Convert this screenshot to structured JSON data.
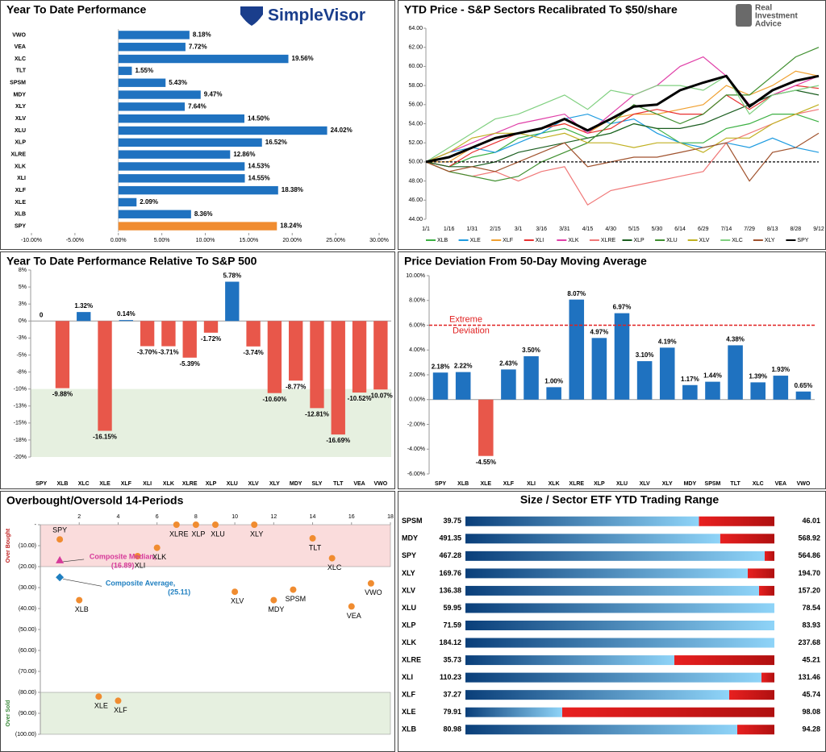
{
  "chart_data": [
    {
      "type": "hbar",
      "title": "Year To Date Performance",
      "logo": "SimpleVisor",
      "categories": [
        "VWO",
        "VEA",
        "XLC",
        "TLT",
        "SPSM",
        "MDY",
        "XLY",
        "XLV",
        "XLU",
        "XLP",
        "XLRE",
        "XLK",
        "XLI",
        "XLF",
        "XLE",
        "XLB",
        "SPY"
      ],
      "values": [
        8.18,
        7.72,
        19.56,
        1.55,
        5.43,
        9.47,
        7.64,
        14.5,
        24.02,
        16.52,
        12.86,
        14.53,
        14.55,
        18.38,
        2.09,
        8.36,
        18.24
      ],
      "value_labels": [
        "8.18%",
        "7.72%",
        "19.56%",
        "1.55%",
        "5.43%",
        "9.47%",
        "7.64%",
        "14.50%",
        "24.02%",
        "16.52%",
        "12.86%",
        "14.53%",
        "14.55%",
        "18.38%",
        "2.09%",
        "8.36%",
        "18.24%"
      ],
      "colors": [
        "#1f72c0",
        "#1f72c0",
        "#1f72c0",
        "#1f72c0",
        "#1f72c0",
        "#1f72c0",
        "#1f72c0",
        "#1f72c0",
        "#1f72c0",
        "#1f72c0",
        "#1f72c0",
        "#1f72c0",
        "#1f72c0",
        "#1f72c0",
        "#1f72c0",
        "#1f72c0",
        "#f08c30"
      ],
      "xlim": [
        -10,
        30
      ],
      "xticks": [
        {
          "value": -10,
          "label": "-10.00%"
        },
        {
          "value": -5,
          "label": "-5.00%"
        },
        {
          "value": 0,
          "label": "0.00%"
        },
        {
          "value": 5,
          "label": "5.00%"
        },
        {
          "value": 10,
          "label": "10.00%"
        },
        {
          "value": 15,
          "label": "15.00%"
        },
        {
          "value": 20,
          "label": "20.00%"
        },
        {
          "value": 25,
          "label": "25.00%"
        },
        {
          "value": 30,
          "label": "30.00%"
        }
      ]
    },
    {
      "type": "line",
      "title": "YTD Price - S&P Sectors Recalibrated To $50/share",
      "logo": [
        "Real",
        "Investment",
        "Advice"
      ],
      "x": [
        "1/1",
        "1/16",
        "1/31",
        "2/15",
        "3/1",
        "3/16",
        "3/31",
        "4/15",
        "4/30",
        "5/15",
        "5/30",
        "6/14",
        "6/29",
        "7/14",
        "7/29",
        "8/13",
        "8/28",
        "9/12"
      ],
      "series": [
        {
          "name": "XLB",
          "color": "#3cb043",
          "values": [
            50,
            49.5,
            50.5,
            51,
            52.5,
            53,
            53.5,
            52.5,
            53,
            54,
            53.5,
            52,
            52,
            53.5,
            54,
            55,
            55,
            54.2
          ]
        },
        {
          "name": "XLE",
          "color": "#1e9be0",
          "values": [
            50,
            51,
            51.5,
            51,
            52,
            53,
            54.5,
            55,
            54,
            54.5,
            53,
            52,
            51.5,
            52,
            51.5,
            52.5,
            51.5,
            51
          ]
        },
        {
          "name": "XLF",
          "color": "#f0a030",
          "values": [
            50,
            50,
            51.5,
            52.5,
            53,
            53.5,
            54,
            53,
            54.5,
            55,
            55,
            55.5,
            56,
            58,
            57,
            58,
            59.5,
            59
          ]
        },
        {
          "name": "XLI",
          "color": "#e83030",
          "values": [
            50,
            49.5,
            51,
            52,
            53,
            53.5,
            54,
            53,
            53.5,
            55,
            55.5,
            55,
            55,
            57,
            55.5,
            57,
            58,
            57.7
          ]
        },
        {
          "name": "XLK",
          "color": "#e040a8",
          "values": [
            50,
            51,
            52,
            53,
            54,
            54.5,
            55,
            53,
            55,
            57,
            58,
            60,
            61,
            59,
            56,
            57,
            58,
            59
          ]
        },
        {
          "name": "XLRE",
          "color": "#f07878",
          "values": [
            50,
            49,
            48.5,
            49,
            48,
            49,
            49.5,
            45.5,
            47,
            47.5,
            48,
            48.5,
            49,
            52,
            53,
            54,
            55,
            55.5
          ]
        },
        {
          "name": "XLP",
          "color": "#1b5e20",
          "values": [
            50,
            49.5,
            49.5,
            50,
            51,
            51.5,
            52,
            52.5,
            53,
            54,
            53.5,
            53.5,
            54,
            55,
            56,
            57,
            57.5,
            57
          ]
        },
        {
          "name": "XLU",
          "color": "#3f8f2f",
          "values": [
            50,
            49,
            48.5,
            48,
            48.5,
            50,
            51,
            52,
            54,
            56,
            55,
            54,
            55,
            57,
            57,
            59,
            61,
            62
          ]
        },
        {
          "name": "XLV",
          "color": "#c0b020",
          "values": [
            50,
            51,
            52.5,
            53,
            53,
            52.5,
            53,
            52,
            52,
            51.5,
            52,
            52,
            51,
            52.5,
            52.5,
            54,
            55,
            56
          ]
        },
        {
          "name": "XLC",
          "color": "#80d080",
          "values": [
            50,
            51.5,
            53,
            54.5,
            55,
            56,
            57,
            55.5,
            57.5,
            57,
            58,
            58,
            57.5,
            59,
            55,
            57,
            57.5,
            58
          ]
        },
        {
          "name": "XLY",
          "color": "#a0522d",
          "values": [
            50,
            49,
            49.5,
            49,
            50,
            51,
            52,
            49.5,
            50,
            50.5,
            50.5,
            51,
            51.5,
            52,
            48,
            51,
            51.5,
            53
          ]
        },
        {
          "name": "SPY",
          "color": "#000000",
          "values": [
            50,
            50.5,
            51.5,
            52.5,
            53,
            53.5,
            54.5,
            53.3,
            54.5,
            55.8,
            56,
            57.5,
            58.3,
            59,
            55.8,
            57.5,
            58.5,
            59
          ]
        }
      ],
      "hline": 50,
      "ylim": [
        44,
        64
      ],
      "yticks": [
        {
          "value": 44,
          "label": "44.00"
        },
        {
          "value": 46,
          "label": "46.00"
        },
        {
          "value": 48,
          "label": "48.00"
        },
        {
          "value": 50,
          "label": "50.00"
        },
        {
          "value": 52,
          "label": "52.00"
        },
        {
          "value": 54,
          "label": "54.00"
        },
        {
          "value": 56,
          "label": "56.00"
        },
        {
          "value": 58,
          "label": "58.00"
        },
        {
          "value": 60,
          "label": "60.00"
        },
        {
          "value": 62,
          "label": "62.00"
        },
        {
          "value": 64,
          "label": "64.00"
        }
      ]
    },
    {
      "type": "bar",
      "title": "Year To Date Performance Relative To S&P 500",
      "categories": [
        "SPY",
        "XLB",
        "XLC",
        "XLE",
        "XLF",
        "XLI",
        "XLK",
        "XLRE",
        "XLP",
        "XLU",
        "XLV",
        "XLY",
        "MDY",
        "SLY",
        "TLT",
        "VEA",
        "VWO"
      ],
      "values": [
        0,
        -9.88,
        1.32,
        -16.15,
        0.14,
        -3.7,
        -3.71,
        -5.39,
        -1.72,
        5.78,
        -3.74,
        -10.6,
        -8.77,
        -12.81,
        -16.69,
        -10.52,
        -10.07
      ],
      "value_labels": [
        "0",
        "-9.88%",
        "1.32%",
        "-16.15%",
        "0.14%",
        "-3.70%",
        "-3.71%",
        "-5.39%",
        "-1.72%",
        "5.78%",
        "-3.74%",
        "-10.60%",
        "-8.77%",
        "-12.81%",
        "-16.69%",
        "-10.52%",
        "-10.07%"
      ],
      "positive_color": "#1f72c0",
      "negative_color": "#e8574a",
      "shade": {
        "ylim": [
          -20,
          -10
        ],
        "color": "#e6f0e0"
      },
      "ylim": [
        -20,
        7.5
      ],
      "yticks": [
        {
          "value": 7.5,
          "label": "8%"
        },
        {
          "value": 5,
          "label": "5%"
        },
        {
          "value": 2.5,
          "label": "3%"
        },
        {
          "value": 0,
          "label": "0%"
        },
        {
          "value": -2.5,
          "label": "-3%"
        },
        {
          "value": -5,
          "label": "-5%"
        },
        {
          "value": -7.5,
          "label": "-8%"
        },
        {
          "value": -10,
          "label": "-10%"
        },
        {
          "value": -12.5,
          "label": "-13%"
        },
        {
          "value": -15,
          "label": "-15%"
        },
        {
          "value": -17.5,
          "label": "-18%"
        },
        {
          "value": -20,
          "label": "-20%"
        }
      ]
    },
    {
      "type": "bar",
      "title": "Price Deviation From 50-Day Moving Average",
      "categories": [
        "SPY",
        "XLB",
        "XLE",
        "XLF",
        "XLI",
        "XLK",
        "XLRE",
        "XLP",
        "XLU",
        "XLV",
        "XLY",
        "MDY",
        "SPSM",
        "TLT",
        "XLC",
        "VEA",
        "VWO"
      ],
      "values": [
        2.18,
        2.22,
        -4.55,
        2.43,
        3.5,
        1.0,
        8.07,
        4.97,
        6.97,
        3.1,
        4.19,
        1.17,
        1.44,
        4.38,
        1.39,
        1.93,
        0.65
      ],
      "value_labels": [
        "2.18%",
        "2.22%",
        "-4.55%",
        "2.43%",
        "3.50%",
        "1.00%",
        "8.07%",
        "4.97%",
        "6.97%",
        "3.10%",
        "4.19%",
        "1.17%",
        "1.44%",
        "4.38%",
        "1.39%",
        "1.93%",
        "0.65%"
      ],
      "positive_color": "#1f72c0",
      "negative_color": "#e8574a",
      "hline": 6,
      "hline_color": "#e02020",
      "annotation": [
        "Extreme",
        "Deviation"
      ],
      "ylim": [
        -6,
        10
      ],
      "yticks": [
        {
          "value": -6,
          "label": "-6.00%"
        },
        {
          "value": -4,
          "label": "-4.00%"
        },
        {
          "value": -2,
          "label": "-2.00%"
        },
        {
          "value": 0,
          "label": "0.00%"
        },
        {
          "value": 2,
          "label": "2.00%"
        },
        {
          "value": 4,
          "label": "4.00%"
        },
        {
          "value": 6,
          "label": "6.00%"
        },
        {
          "value": 8,
          "label": "8.00%"
        },
        {
          "value": 10,
          "label": "10.00%"
        }
      ]
    },
    {
      "type": "scatter",
      "title": "Overbought/Oversold 14-Periods",
      "points": {
        "color": "#f08c30",
        "labels": [
          "SPY",
          "XLB",
          "XLE",
          "XLF",
          "XLI",
          "XLK",
          "XLRE",
          "XLP",
          "XLU",
          "XLV",
          "XLY",
          "MDY",
          "SPSM",
          "TLT",
          "XLC",
          "VEA",
          "VWO"
        ],
        "x": [
          1,
          2,
          3,
          4,
          5,
          6,
          7,
          8,
          9,
          10,
          11,
          12,
          13,
          14,
          15,
          16,
          17
        ],
        "values": [
          -7,
          -36,
          -82,
          -84,
          -15,
          -11,
          0,
          0,
          0,
          -32,
          0,
          -36,
          -31,
          -6.5,
          -16,
          -39,
          -28
        ]
      },
      "median": {
        "name": "Composite Median,",
        "x": 1,
        "value": -16.89,
        "value_label": "(16.89)",
        "color": "#d63a9a"
      },
      "average": {
        "name": "Composite Average,",
        "x": 1,
        "value": -25.11,
        "value_label": "(25.11)",
        "color": "#1f7fc0"
      },
      "zones": [
        {
          "label": "Over Bought",
          "ylim": [
            -20,
            0
          ],
          "color": "#fadcdc",
          "label_color": "#c02020"
        },
        {
          "label": "Over Sold",
          "ylim": [
            -100,
            -80
          ],
          "color": "#e6f0e0",
          "label_color": "#3a8a3a"
        }
      ],
      "xlim": [
        0,
        18
      ],
      "xticks": [
        2,
        4,
        6,
        8,
        10,
        12,
        14,
        16,
        18
      ],
      "ylim": [
        -100,
        0
      ],
      "yticks": [
        {
          "value": 0,
          "label": "-"
        },
        {
          "value": -10,
          "label": "(10.00)"
        },
        {
          "value": -20,
          "label": "(20.00)"
        },
        {
          "value": -30,
          "label": "(30.00)"
        },
        {
          "value": -40,
          "label": "(40.00)"
        },
        {
          "value": -50,
          "label": "(50.00)"
        },
        {
          "value": -60,
          "label": "(60.00)"
        },
        {
          "value": -70,
          "label": "(70.00)"
        },
        {
          "value": -80,
          "label": "(80.00)"
        },
        {
          "value": -90,
          "label": "(90.00)"
        },
        {
          "value": -100,
          "label": "(100.00)"
        }
      ]
    },
    {
      "type": "range",
      "title": "Size / Sector ETF YTD Trading Range",
      "categories": [
        "SPSM",
        "MDY",
        "SPY",
        "XLY",
        "XLV",
        "XLU",
        "XLP",
        "XLK",
        "XLRE",
        "XLI",
        "XLF",
        "XLE",
        "XLB"
      ],
      "low": [
        39.75,
        491.35,
        467.28,
        169.76,
        136.38,
        59.95,
        71.59,
        184.12,
        35.73,
        110.23,
        37.27,
        79.91,
        80.98
      ],
      "high": [
        46.01,
        568.92,
        564.86,
        194.7,
        157.2,
        78.54,
        83.93,
        237.68,
        45.21,
        131.46,
        45.74,
        98.08,
        94.28
      ],
      "values": [
        44.48,
        555.3,
        561.8,
        192.55,
        156.16,
        78.54,
        83.93,
        237.68,
        42.14,
        130.57,
        44.5,
        85.6,
        92.68
      ],
      "low_labels": [
        "39.75",
        "491.35",
        "467.28",
        "169.76",
        "136.38",
        "59.95",
        "71.59",
        "184.12",
        "35.73",
        "110.23",
        "37.27",
        "79.91",
        "80.98"
      ],
      "high_labels": [
        "46.01",
        "568.92",
        "564.86",
        "194.70",
        "157.20",
        "78.54",
        "83.93",
        "237.68",
        "45.21",
        "131.46",
        "45.74",
        "98.08",
        "94.28"
      ],
      "gradient": [
        "#0a3f7a",
        "#8fd4f8"
      ],
      "remaining_color": [
        "#e82020",
        "#b01010"
      ]
    }
  ]
}
